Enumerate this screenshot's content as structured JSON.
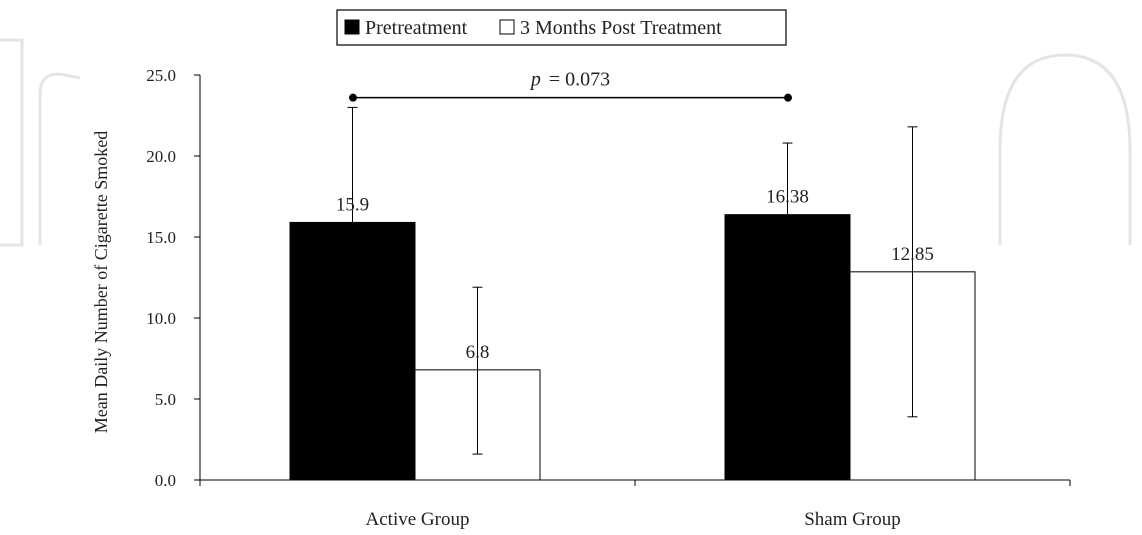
{
  "chart_data": {
    "type": "bar",
    "title": "",
    "xlabel": "",
    "ylabel": "Mean Daily Number of Cigarette Smoked",
    "ylim": [
      0,
      25
    ],
    "yticks": [
      "0.0",
      "5.0",
      "10.0",
      "15.0",
      "20.0",
      "25.0"
    ],
    "ytick_values": [
      0,
      5,
      10,
      15,
      20,
      25
    ],
    "categories": [
      "Active Group",
      "Sham Group"
    ],
    "series": [
      {
        "name": "Pretreatment",
        "color": "#000000",
        "values": [
          15.9,
          16.38
        ],
        "labels": [
          "15.9",
          "16.38"
        ],
        "error_upper": [
          23.0,
          20.8
        ],
        "error_lower": [
          15.9,
          16.38
        ]
      },
      {
        "name": "3 Months Post Treatment",
        "color": "#ffffff",
        "values": [
          6.8,
          12.85
        ],
        "labels": [
          "6.8",
          "12.85"
        ],
        "error_upper": [
          11.9,
          21.8
        ],
        "error_lower": [
          1.6,
          3.9
        ]
      }
    ],
    "legend_position": "top-center",
    "grid": false,
    "annotation": {
      "p_symbol": "p",
      "p_rest": "= 0.073",
      "from_category": 0,
      "to_category": 1,
      "y": 23.6
    }
  }
}
